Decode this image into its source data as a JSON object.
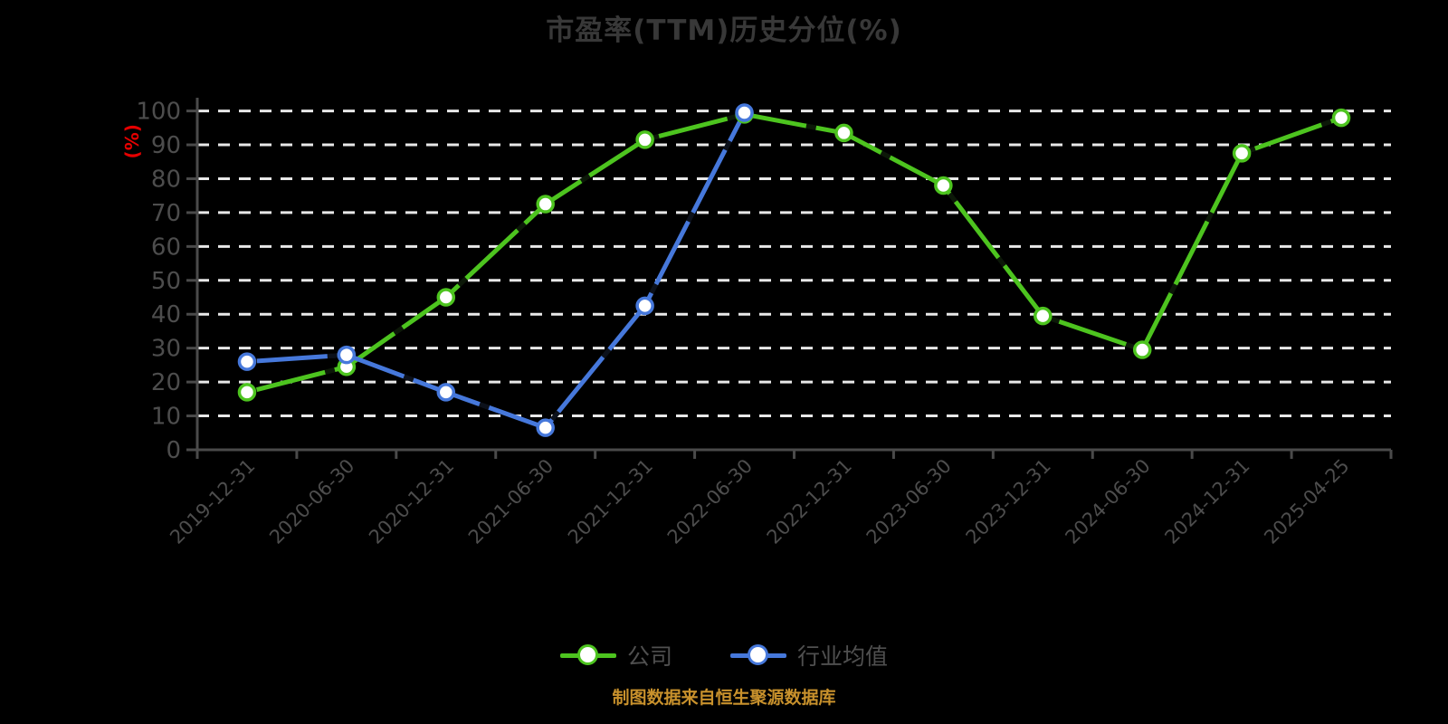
{
  "page": {
    "background": "#000000"
  },
  "title": {
    "text": "市盈率(TTM)历史分位(%)",
    "color": "#383838"
  },
  "caption": {
    "text": "制图数据来自恒生聚源数据库",
    "color": "#C8912C"
  },
  "chart_data": {
    "type": "line",
    "title": "市盈率(TTM)历史分位(%)",
    "xlabel": "",
    "ylabel": "(%)",
    "ylabel_color": "#E60000",
    "ylim": [
      0,
      100
    ],
    "ytick_step": 10,
    "yticks": [
      0,
      10,
      20,
      30,
      40,
      50,
      60,
      70,
      80,
      90,
      100
    ],
    "grid": "horizontal-dashed-white",
    "gridline_color": "#E8E8E8",
    "axis_color": "#4A4A4A",
    "tick_label_color": "#4D4D4D",
    "legend_position": "bottom-center",
    "marker_style": "circle-white-fill",
    "categories": [
      "2019-12-31",
      "2020-06-30",
      "2020-12-31",
      "2021-06-30",
      "2021-12-31",
      "2022-06-30",
      "2022-12-31",
      "2023-06-30",
      "2023-12-31",
      "2024-06-30",
      "2024-12-31",
      "2025-04-25"
    ],
    "series": [
      {
        "id": "company",
        "name": "公司",
        "color": "#4DC41F",
        "values": [
          17,
          24.5,
          45,
          72.5,
          91.5,
          99,
          93.5,
          78,
          39.5,
          29.5,
          87.5,
          98
        ]
      },
      {
        "id": "industry",
        "name": "行业均值",
        "color": "#4678DB",
        "values": [
          26,
          28,
          17,
          6.5,
          42.5,
          99.5,
          null,
          null,
          null,
          null,
          null,
          null
        ]
      }
    ]
  }
}
